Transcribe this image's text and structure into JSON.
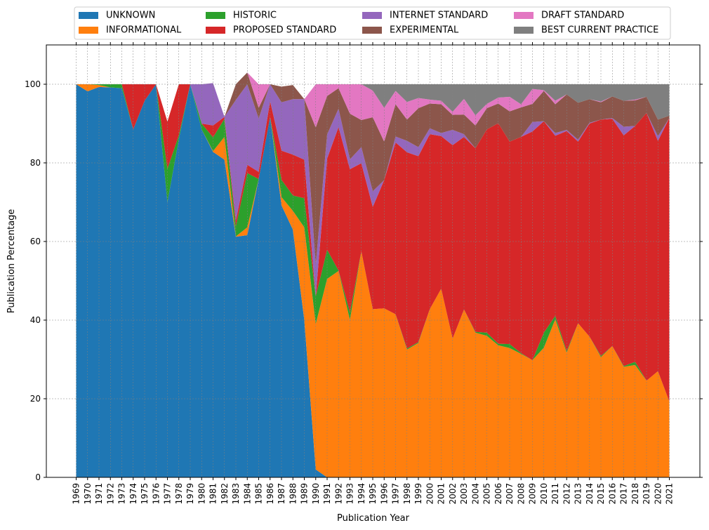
{
  "chart_data": {
    "type": "area",
    "stacked": true,
    "xlabel": "Publication Year",
    "ylabel": "Publication Percentage",
    "ylim": [
      0,
      110
    ],
    "yticks": [
      0,
      20,
      40,
      60,
      80,
      100
    ],
    "grid": "dashed, both axes",
    "legend_position": "top-center, 4 columns",
    "x": [
      "1969",
      "1970",
      "1971",
      "1972",
      "1973",
      "1974",
      "1975",
      "1976",
      "1977",
      "1978",
      "1979",
      "1980",
      "1981",
      "1982",
      "1983",
      "1984",
      "1985",
      "1986",
      "1987",
      "1988",
      "1989",
      "1990",
      "1991",
      "1992",
      "1993",
      "1994",
      "1995",
      "1996",
      "1997",
      "1998",
      "1999",
      "2000",
      "2001",
      "2002",
      "2003",
      "2004",
      "2005",
      "2006",
      "2007",
      "2008",
      "2009",
      "2010",
      "2011",
      "2012",
      "2013",
      "2014",
      "2015",
      "2016",
      "2017",
      "2018",
      "2019",
      "2020",
      "2021"
    ],
    "series": [
      {
        "name": "UNKNOWN",
        "color": "#1f77b4",
        "values": [
          100,
          98.2,
          99.3,
          99.2,
          99.0,
          88.5,
          95.8,
          100,
          70.0,
          86.0,
          100,
          88.5,
          82.8,
          80.8,
          61.2,
          61.6,
          75.9,
          91.7,
          69.2,
          63.0,
          40.0,
          2.0,
          0,
          0,
          0,
          0,
          0,
          0,
          0,
          0,
          0,
          0,
          0,
          0,
          0,
          0,
          0,
          0,
          0,
          0,
          0,
          0,
          0,
          0,
          0,
          0,
          0,
          0,
          0,
          0,
          0,
          0,
          0
        ]
      },
      {
        "name": "INFORMATIONAL",
        "color": "#ff7f0e",
        "values": [
          0,
          1.8,
          0.5,
          0,
          0,
          0,
          0,
          0,
          0,
          0,
          0,
          0,
          0.2,
          5.8,
          0.1,
          2.0,
          0,
          0,
          2.1,
          4.8,
          23.6,
          37.0,
          50.5,
          52.5,
          40.0,
          57.5,
          42.8,
          43.0,
          41.5,
          32.5,
          34.2,
          42.8,
          48.0,
          35.3,
          42.7,
          36.8,
          36.0,
          33.6,
          32.9,
          31.4,
          29.8,
          33.0,
          40.2,
          31.7,
          39.2,
          35.8,
          30.6,
          33.4,
          28.1,
          28.6,
          24.6,
          27.0,
          19.3
        ]
      },
      {
        "name": "HISTORIC",
        "color": "#2ca02c",
        "values": [
          0,
          0,
          0.2,
          0.8,
          1.0,
          0,
          0,
          0,
          8.5,
          1.0,
          0,
          1.5,
          3.5,
          4.6,
          2.5,
          13.8,
          0,
          0,
          4.4,
          3.9,
          7.4,
          7.0,
          7.4,
          0.1,
          2.0,
          0,
          0,
          0,
          0,
          0.3,
          0.2,
          0,
          0,
          0,
          0,
          0.2,
          0.8,
          0.4,
          1.0,
          0.2,
          0,
          3.8,
          0.9,
          0.4,
          0,
          0,
          0.3,
          0,
          0.2,
          0.8,
          0,
          0,
          0
        ]
      },
      {
        "name": "PROPOSED STANDARD",
        "color": "#d62728",
        "values": [
          0,
          0,
          0,
          0,
          0,
          11.5,
          4.2,
          0,
          12.0,
          13.0,
          0,
          0,
          3.0,
          0.5,
          1.5,
          2.1,
          1.8,
          4.0,
          7.4,
          10.4,
          9.8,
          0,
          23.2,
          36.5,
          36.4,
          22.4,
          26.0,
          32.6,
          43.7,
          49.9,
          47.3,
          44.5,
          38.8,
          49.2,
          43.9,
          46.7,
          51.7,
          56.1,
          51.5,
          55.0,
          58.2,
          53.8,
          45.8,
          56.0,
          46.2,
          54.2,
          60.1,
          57.8,
          58.7,
          60.0,
          68.1,
          58.6,
          72.1
        ]
      },
      {
        "name": "INTERNET STANDARD",
        "color": "#9467bd",
        "values": [
          0,
          0,
          0,
          0,
          0,
          0,
          0,
          0,
          0,
          0,
          0,
          10.0,
          10.8,
          0,
          30.7,
          20.5,
          13.6,
          4.3,
          12.3,
          14.1,
          15.4,
          8.0,
          6.1,
          4.7,
          2.5,
          4.1,
          4.0,
          0,
          1.5,
          2.9,
          2.3,
          1.5,
          0.8,
          3.9,
          0.7,
          0,
          0,
          0,
          0,
          0,
          2.4,
          0,
          0.7,
          0.3,
          0.5,
          0.2,
          0,
          0.2,
          2.2,
          0,
          0,
          1.2,
          0
        ]
      },
      {
        "name": "EXPERIMENTAL",
        "color": "#8c564b",
        "values": [
          0,
          0,
          0,
          0,
          0,
          0,
          0,
          0,
          0,
          0,
          0,
          0,
          0,
          0,
          4.0,
          3.0,
          2.7,
          0,
          4.0,
          3.6,
          0,
          35.0,
          9.8,
          5.2,
          11.6,
          6.9,
          18.8,
          9.8,
          8.2,
          5.4,
          9.9,
          6.3,
          7.3,
          3.8,
          5.0,
          5.8,
          5.4,
          5.0,
          7.7,
          7.5,
          4.6,
          7.7,
          7.3,
          9.0,
          9.4,
          6.0,
          4.4,
          5.5,
          6.6,
          6.5,
          4.1,
          4.2,
          0.6
        ]
      },
      {
        "name": "DRAFT STANDARD",
        "color": "#e377c2",
        "values": [
          0,
          0,
          0,
          0,
          0,
          0,
          0,
          0,
          0,
          0,
          0,
          0,
          0,
          0,
          0,
          0,
          6.0,
          0,
          0,
          0,
          0,
          11.0,
          3.0,
          1.0,
          7.5,
          9.1,
          6.8,
          8.6,
          3.4,
          4.5,
          2.6,
          1.0,
          0.9,
          0.8,
          4.0,
          2.6,
          1.1,
          1.5,
          3.7,
          0.8,
          3.8,
          0.2,
          0.9,
          0,
          0,
          0,
          0.2,
          0,
          0,
          0.2,
          0,
          0,
          0
        ]
      },
      {
        "name": "BEST CURRENT PRACTICE",
        "color": "#7f7f7f",
        "values": [
          0,
          0,
          0,
          0,
          0,
          0,
          0,
          0,
          0,
          0,
          0,
          0,
          0,
          0,
          0,
          0,
          0,
          0,
          0,
          0,
          0,
          0,
          0,
          0,
          0,
          0,
          1.6,
          6.0,
          1.7,
          4.5,
          3.5,
          3.9,
          4.2,
          7.0,
          3.7,
          7.9,
          5.0,
          3.4,
          3.2,
          5.1,
          1.2,
          1.5,
          4.2,
          2.6,
          4.7,
          3.8,
          4.4,
          3.1,
          4.2,
          3.9,
          3.2,
          9.0,
          8.0
        ]
      }
    ]
  }
}
